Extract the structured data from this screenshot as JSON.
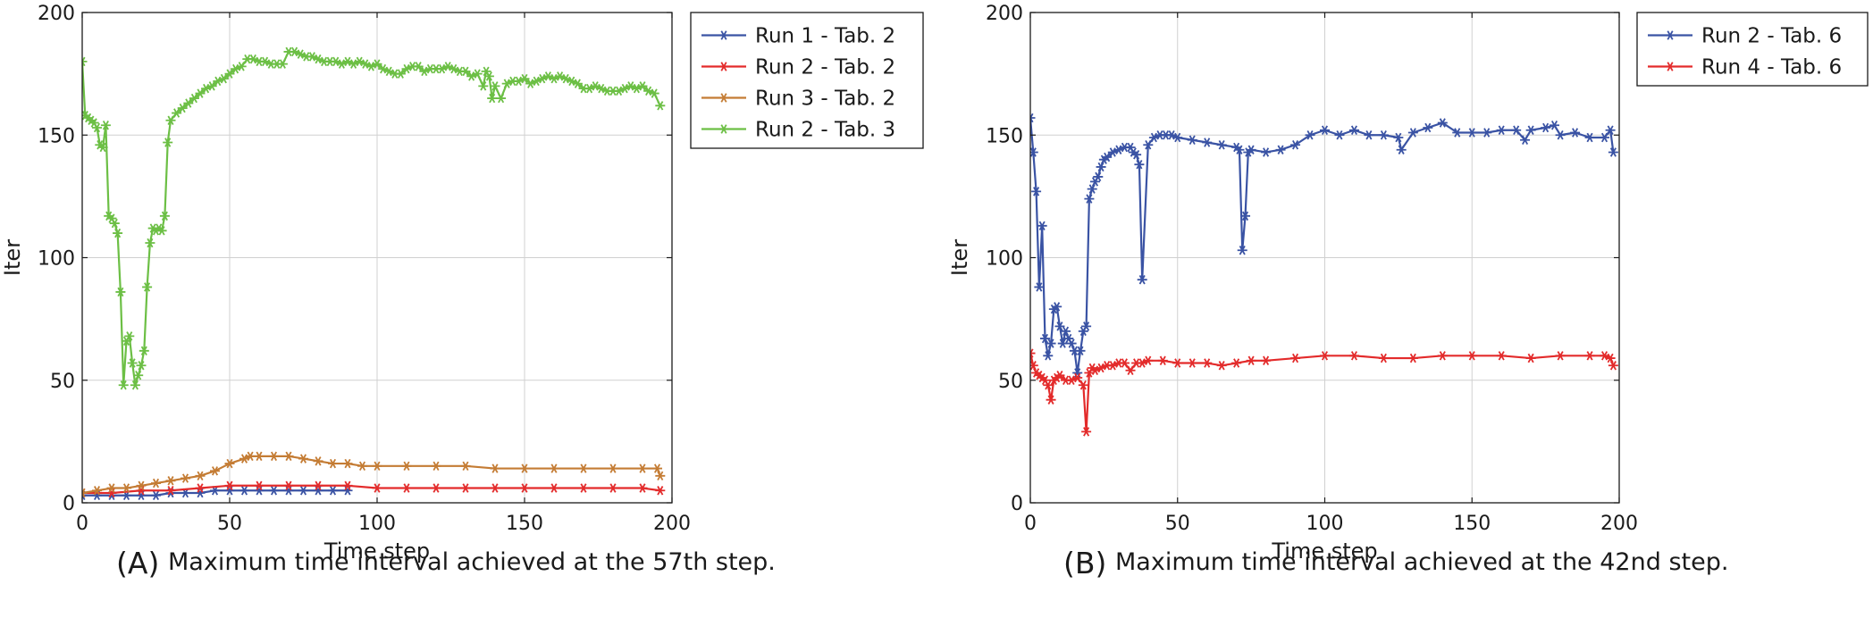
{
  "chart_data": [
    {
      "id": "A",
      "type": "line",
      "caption_label": "(A)",
      "caption_text": "Maximum time interval achieved at the 57th step.",
      "xlabel": "Time step",
      "ylabel": "Iter",
      "xlim": [
        0,
        200
      ],
      "ylim": [
        0,
        200
      ],
      "xticks": [
        0,
        50,
        100,
        150,
        200
      ],
      "yticks": [
        0,
        50,
        100,
        150,
        200
      ],
      "grid": true,
      "legend_position": "outside-top-right",
      "marker": "asterisk",
      "series": [
        {
          "name": "Run 1 - Tab. 2",
          "color": "#3a53a4",
          "x": [
            0,
            5,
            10,
            15,
            20,
            25,
            30,
            35,
            40,
            45,
            50,
            55,
            60,
            65,
            70,
            75,
            80,
            85,
            90
          ],
          "y": [
            3,
            3,
            3,
            3,
            3,
            3,
            4,
            4,
            4,
            5,
            5,
            5,
            5,
            5,
            5,
            5,
            5,
            5,
            5
          ]
        },
        {
          "name": "Run 2 - Tab. 2",
          "color": "#e32b2b",
          "x": [
            0,
            10,
            20,
            30,
            40,
            50,
            60,
            70,
            80,
            90,
            100,
            110,
            120,
            130,
            140,
            150,
            160,
            170,
            180,
            190,
            196
          ],
          "y": [
            4,
            4,
            5,
            5,
            6,
            7,
            7,
            7,
            7,
            7,
            6,
            6,
            6,
            6,
            6,
            6,
            6,
            6,
            6,
            6,
            5
          ]
        },
        {
          "name": "Run 3 - Tab. 2",
          "color": "#c47c34",
          "x": [
            0,
            5,
            10,
            15,
            20,
            25,
            30,
            35,
            40,
            45,
            50,
            55,
            57,
            60,
            65,
            70,
            75,
            80,
            85,
            90,
            95,
            100,
            110,
            120,
            130,
            140,
            150,
            160,
            170,
            180,
            190,
            195,
            196
          ],
          "y": [
            4,
            5,
            6,
            6,
            7,
            8,
            9,
            10,
            11,
            13,
            16,
            18,
            19,
            19,
            19,
            19,
            18,
            17,
            16,
            16,
            15,
            15,
            15,
            15,
            15,
            14,
            14,
            14,
            14,
            14,
            14,
            14,
            11
          ]
        },
        {
          "name": "Run 2 - Tab. 3",
          "color": "#6cbf45",
          "x": [
            0,
            1,
            2,
            3,
            4,
            5,
            6,
            7,
            8,
            9,
            10,
            11,
            12,
            13,
            14,
            15,
            16,
            17,
            18,
            19,
            20,
            21,
            22,
            23,
            24,
            25,
            26,
            27,
            28,
            29,
            30,
            32,
            34,
            36,
            38,
            40,
            42,
            44,
            46,
            48,
            50,
            52,
            54,
            56,
            58,
            60,
            62,
            64,
            66,
            68,
            70,
            72,
            74,
            76,
            78,
            80,
            82,
            84,
            86,
            88,
            90,
            92,
            94,
            96,
            98,
            100,
            102,
            104,
            106,
            108,
            110,
            112,
            114,
            116,
            118,
            120,
            122,
            124,
            126,
            128,
            130,
            132,
            134,
            136,
            137,
            138,
            139,
            140,
            142,
            144,
            146,
            148,
            150,
            152,
            154,
            156,
            158,
            160,
            162,
            164,
            166,
            168,
            170,
            172,
            174,
            176,
            178,
            180,
            182,
            184,
            186,
            188,
            190,
            192,
            194,
            196
          ],
          "y": [
            180,
            158,
            157,
            156,
            155,
            153,
            146,
            145,
            154,
            117,
            116,
            114,
            110,
            86,
            48,
            66,
            68,
            57,
            48,
            52,
            56,
            62,
            88,
            106,
            112,
            111,
            112,
            111,
            117,
            147,
            156,
            159,
            161,
            163,
            165,
            167,
            169,
            170,
            172,
            173,
            175,
            177,
            178,
            181,
            181,
            180,
            180,
            179,
            179,
            179,
            184,
            184,
            183,
            182,
            182,
            181,
            180,
            180,
            180,
            179,
            180,
            179,
            180,
            179,
            178,
            179,
            177,
            176,
            175,
            175,
            177,
            178,
            178,
            176,
            177,
            177,
            177,
            178,
            177,
            176,
            176,
            174,
            175,
            170,
            176,
            174,
            165,
            170,
            165,
            171,
            172,
            172,
            173,
            171,
            172,
            173,
            174,
            173,
            174,
            173,
            172,
            171,
            169,
            169,
            170,
            169,
            168,
            168,
            168,
            169,
            170,
            169,
            170,
            168,
            167,
            162
          ]
        }
      ]
    },
    {
      "id": "B",
      "type": "line",
      "caption_label": "(B)",
      "caption_text": "Maximum time interval achieved at the 42nd step.",
      "xlabel": "Time step",
      "ylabel": "Iter",
      "xlim": [
        0,
        200
      ],
      "ylim": [
        0,
        200
      ],
      "xticks": [
        0,
        50,
        100,
        150,
        200
      ],
      "yticks": [
        0,
        50,
        100,
        150,
        200
      ],
      "grid": true,
      "legend_position": "outside-top-right",
      "marker": "asterisk",
      "series": [
        {
          "name": "Run 2 - Tab. 6",
          "color": "#3a53a4",
          "x": [
            0,
            1,
            2,
            3,
            4,
            5,
            6,
            7,
            8,
            9,
            10,
            11,
            12,
            13,
            14,
            15,
            16,
            17,
            18,
            19,
            20,
            21,
            22,
            23,
            24,
            25,
            26,
            28,
            30,
            32,
            34,
            35,
            36,
            37,
            38,
            40,
            42,
            44,
            46,
            48,
            50,
            55,
            60,
            65,
            70,
            71,
            72,
            73,
            74,
            75,
            80,
            85,
            90,
            95,
            100,
            105,
            110,
            115,
            120,
            125,
            126,
            130,
            135,
            140,
            145,
            150,
            155,
            160,
            165,
            168,
            170,
            175,
            178,
            180,
            185,
            190,
            195,
            197,
            198
          ],
          "y": [
            157,
            143,
            127,
            88,
            113,
            67,
            60,
            65,
            79,
            80,
            72,
            65,
            70,
            67,
            65,
            62,
            53,
            62,
            70,
            72,
            124,
            128,
            131,
            133,
            137,
            140,
            141,
            143,
            144,
            145,
            145,
            143,
            142,
            138,
            91,
            146,
            149,
            150,
            150,
            150,
            149,
            148,
            147,
            146,
            145,
            144,
            103,
            117,
            143,
            144,
            143,
            144,
            146,
            150,
            152,
            150,
            152,
            150,
            150,
            149,
            144,
            151,
            153,
            155,
            151,
            151,
            151,
            152,
            152,
            148,
            152,
            153,
            154,
            150,
            151,
            149,
            149,
            152,
            143
          ]
        },
        {
          "name": "Run 4 - Tab. 6",
          "color": "#e32b2b",
          "x": [
            0,
            1,
            2,
            3,
            4,
            5,
            6,
            7,
            8,
            9,
            10,
            12,
            14,
            16,
            18,
            19,
            20,
            21,
            22,
            24,
            26,
            28,
            30,
            32,
            34,
            36,
            38,
            40,
            45,
            50,
            55,
            60,
            65,
            70,
            75,
            80,
            90,
            100,
            110,
            120,
            130,
            140,
            150,
            160,
            170,
            180,
            190,
            195,
            197,
            198
          ],
          "y": [
            61,
            56,
            53,
            52,
            51,
            50,
            48,
            42,
            50,
            51,
            52,
            50,
            50,
            51,
            48,
            29,
            53,
            55,
            54,
            55,
            56,
            56,
            57,
            57,
            54,
            57,
            57,
            58,
            58,
            57,
            57,
            57,
            56,
            57,
            58,
            58,
            59,
            60,
            60,
            59,
            59,
            60,
            60,
            60,
            59,
            60,
            60,
            60,
            59,
            56
          ]
        }
      ]
    }
  ]
}
